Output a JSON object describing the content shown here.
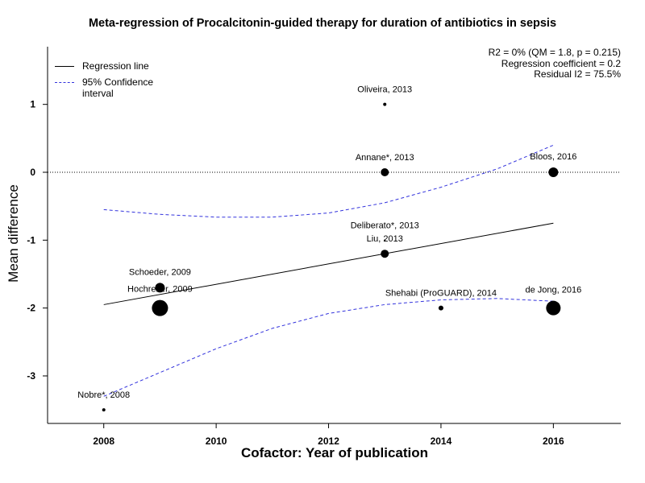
{
  "chart_data": {
    "type": "scatter",
    "title": "Meta-regression of  Procalcitonin-guided therapy for duration of antibiotics in sepsis",
    "xlabel": "Cofactor:  Year of publication",
    "ylabel": "Mean difference",
    "xlim": [
      2007,
      2017.2
    ],
    "ylim": [
      -3.7,
      1.85
    ],
    "xticks": [
      2008,
      2010,
      2012,
      2014,
      2016
    ],
    "yticks": [
      -3,
      -2,
      -1,
      0,
      1
    ],
    "reference_line_y": 0,
    "stats": [
      "R2 = 0% (QM = 1.8, p = 0.215)",
      "Regression coefficient = 0.2",
      "Residual I2 = 75.5%"
    ],
    "legend": {
      "position": "top-left",
      "items": [
        {
          "label": "Regression line",
          "color": "#000000",
          "style": "solid"
        },
        {
          "label": "95% Confidence interval",
          "color": "#3333dd",
          "style": "dashed"
        }
      ]
    },
    "points": [
      {
        "label": "Oliveira, 2013",
        "x": 2013,
        "y": 1.0,
        "weight": 2
      },
      {
        "label": "Annane*, 2013",
        "x": 2013,
        "y": 0.0,
        "weight": 5
      },
      {
        "label": "Bloos, 2016",
        "x": 2016,
        "y": 0.0,
        "weight": 6
      },
      {
        "label": "Deliberato*, 2013",
        "x": 2013,
        "y": -1.0,
        "weight": 1
      },
      {
        "label": "Liu, 2013",
        "x": 2013,
        "y": -1.2,
        "weight": 5
      },
      {
        "label": "Schoeder, 2009",
        "x": 2009,
        "y": -1.7,
        "weight": 6
      },
      {
        "label": "Hochreiter, 2009",
        "x": 2009,
        "y": -2.0,
        "weight": 10
      },
      {
        "label": "Shehabi (ProGUARD), 2014",
        "x": 2014,
        "y": -2.0,
        "weight": 3
      },
      {
        "label": "de Jong, 2016",
        "x": 2016,
        "y": -2.0,
        "weight": 9
      },
      {
        "label": "Nobre*, 2008",
        "x": 2008,
        "y": -3.5,
        "weight": 2
      }
    ],
    "regression_line": {
      "x": [
        2008,
        2016
      ],
      "y": [
        -1.95,
        -0.75
      ]
    },
    "ci_upper": {
      "x": [
        2008,
        2009,
        2010,
        2011,
        2012,
        2013,
        2014,
        2015,
        2016
      ],
      "y": [
        -0.55,
        -0.62,
        -0.66,
        -0.66,
        -0.6,
        -0.45,
        -0.22,
        0.05,
        0.4
      ]
    },
    "ci_lower": {
      "x": [
        2008,
        2009,
        2010,
        2011,
        2012,
        2013,
        2014,
        2015,
        2016
      ],
      "y": [
        -3.3,
        -2.95,
        -2.6,
        -2.3,
        -2.08,
        -1.95,
        -1.88,
        -1.86,
        -1.9
      ]
    },
    "colors": {
      "points": "#000000",
      "regression": "#000000",
      "ci": "#3333dd",
      "axis": "#000000"
    }
  }
}
